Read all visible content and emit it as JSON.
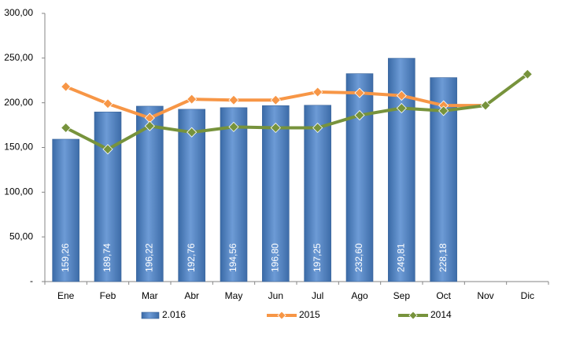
{
  "chart_data": {
    "type": "combo",
    "categories": [
      "Ene",
      "Feb",
      "Mar",
      "Abr",
      "May",
      "Jun",
      "Jul",
      "Ago",
      "Sep",
      "Oct",
      "Nov",
      "Dic"
    ],
    "series": [
      {
        "name": "2.016",
        "type": "bar",
        "color": "#4f81bd",
        "values": [
          159.26,
          189.74,
          196.22,
          192.76,
          194.56,
          196.8,
          197.25,
          232.6,
          249.81,
          228.18,
          null,
          null
        ],
        "value_labels": [
          "159,26",
          "189,74",
          "196,22",
          "192,76",
          "194,56",
          "196,80",
          "197,25",
          "232,60",
          "249,81",
          "228,18",
          null,
          null
        ]
      },
      {
        "name": "2015",
        "type": "line",
        "color": "#f79646",
        "values": [
          218,
          199,
          183,
          204,
          203,
          203,
          212,
          211,
          208,
          197,
          197,
          null
        ]
      },
      {
        "name": "2014",
        "type": "line",
        "color": "#77933c",
        "values": [
          172,
          148,
          174,
          167,
          173,
          172,
          172,
          186,
          194,
          191,
          197,
          232
        ]
      }
    ],
    "ylim": [
      0,
      300
    ],
    "yticks": [
      {
        "value": 0,
        "label": "-"
      },
      {
        "value": 50,
        "label": "50,00"
      },
      {
        "value": 100,
        "label": "100,00"
      },
      {
        "value": 150,
        "label": "150,00"
      },
      {
        "value": 200,
        "label": "200,00"
      },
      {
        "value": 250,
        "label": "250,00"
      },
      {
        "value": 300,
        "label": "300,00"
      }
    ],
    "legend": "bottom"
  }
}
